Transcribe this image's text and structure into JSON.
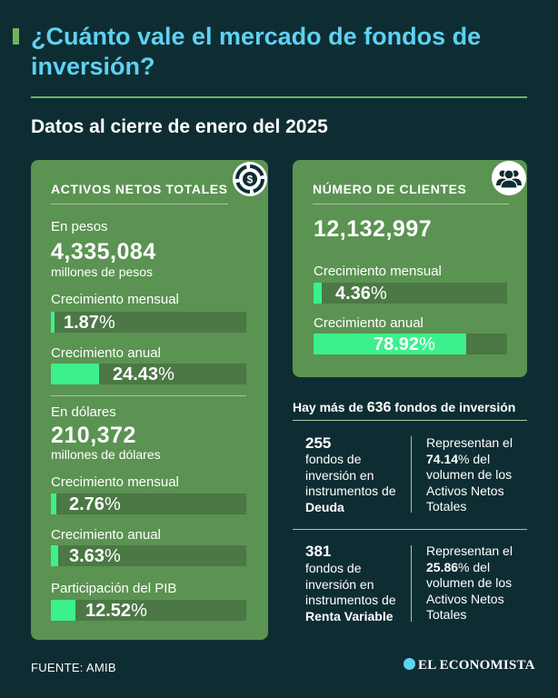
{
  "title": "¿Cuánto vale el mercado de fondos de inversión?",
  "subtitle": "Datos al cierre de enero del 2025",
  "colors": {
    "background": "#0e2d33",
    "title": "#5fd1f2",
    "card": "#5b9352",
    "bar_track": "#4b7845",
    "bar_fill": "#3cf08c"
  },
  "assets": {
    "header": "ACTIVOS NETOS TOTALES",
    "icon": "money-cycle-icon",
    "pesos": {
      "label": "En pesos",
      "value": "4,335,084",
      "unit": "millones de pesos"
    },
    "dollars": {
      "label": "En dólares",
      "value": "210,372",
      "unit": "millones de dólares"
    }
  },
  "clients": {
    "header": "NÚMERO DE CLIENTES",
    "icon": "people-icon",
    "value": "12,132,997"
  },
  "funds": {
    "headline_before": "Hay más de ",
    "headline_count": "636",
    "headline_after": " fondos de inversión",
    "rows": [
      {
        "count": "255",
        "desc_before": "fondos de inversión en instrumentos de ",
        "desc_bold": "Deuda",
        "share_before": "Representan el ",
        "share_pct": "74.14",
        "share_after": "% del volumen de los Activos Netos Totales"
      },
      {
        "count": "381",
        "desc_before": "fondos de inversión en instrumentos de ",
        "desc_bold": "Renta Variable",
        "share_before": "Representan el ",
        "share_pct": "25.86",
        "share_after": "% del volumen de los Activos Netos Totales"
      }
    ]
  },
  "chart_data": {
    "type": "bar",
    "title": "Datos al cierre de enero del 2025",
    "unit": "%",
    "scale_max": 100,
    "series": [
      {
        "group": "assets_pesos",
        "label": "Crecimiento mensual",
        "value": 1.87
      },
      {
        "group": "assets_pesos",
        "label": "Crecimiento anual",
        "value": 24.43
      },
      {
        "group": "assets_dollars",
        "label": "Crecimiento mensual",
        "value": 2.76
      },
      {
        "group": "assets_dollars",
        "label": "Crecimiento anual",
        "value": 3.63
      },
      {
        "group": "assets_dollars",
        "label": "Participación del PIB",
        "value": 12.52
      },
      {
        "group": "clients",
        "label": "Crecimiento mensual",
        "value": 4.36
      },
      {
        "group": "clients",
        "label": "Crecimiento anual",
        "value": 78.92
      }
    ]
  },
  "footer": {
    "source": "FUENTE: AMIB",
    "brand": "EL ECONOMISTA"
  }
}
